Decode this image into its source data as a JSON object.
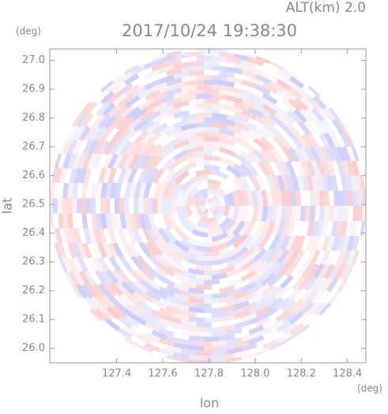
{
  "chart_data": {
    "type": "ppi",
    "title": "2017/10/24 19:38:30",
    "subtitle": "ALT(km) 2.0",
    "x_label": "lon",
    "y_label": "lat",
    "x_unit": "(deg)",
    "y_unit": "(deg)",
    "xlim": [
      127.11,
      128.48
    ],
    "ylim": [
      25.95,
      27.04
    ],
    "xticks": [
      127.4,
      127.6,
      127.8,
      {
        "value": 128.0,
        "label": "128.0"
      },
      128.2,
      128.4
    ],
    "yticks": [
      {
        "value": 26.0,
        "label": "26.0"
      },
      26.1,
      26.2,
      26.3,
      26.4,
      26.5,
      26.6,
      26.7,
      26.8,
      26.9,
      {
        "value": 27.0,
        "label": "27.0"
      }
    ]
  }
}
